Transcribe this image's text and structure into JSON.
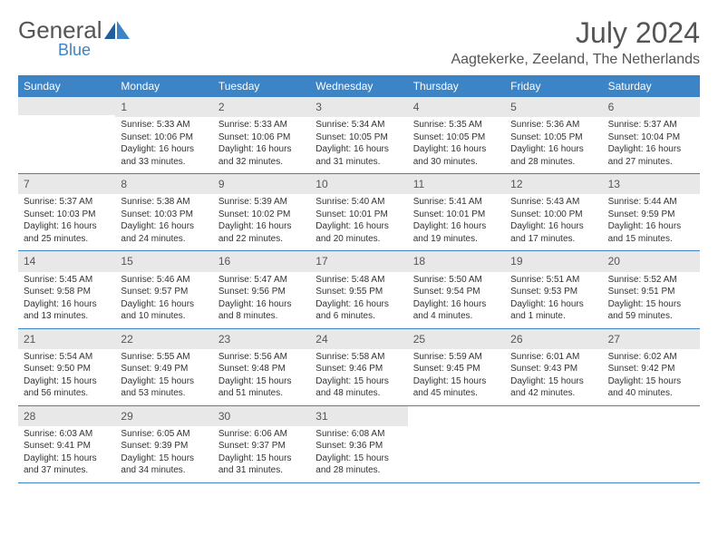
{
  "brand": {
    "general": "General",
    "blue": "Blue"
  },
  "title": "July 2024",
  "location": "Aagtekerke, Zeeland, The Netherlands",
  "colors": {
    "header_bg": "#3d84c6",
    "header_text": "#ffffff",
    "shaded_bg": "#e8e8e8",
    "text": "#333333",
    "title_text": "#555555",
    "border": "#3d84c6"
  },
  "day_names": [
    "Sunday",
    "Monday",
    "Tuesday",
    "Wednesday",
    "Thursday",
    "Friday",
    "Saturday"
  ],
  "weeks": [
    [
      null,
      {
        "d": "1",
        "sr": "Sunrise: 5:33 AM",
        "ss": "Sunset: 10:06 PM",
        "dl1": "Daylight: 16 hours",
        "dl2": "and 33 minutes."
      },
      {
        "d": "2",
        "sr": "Sunrise: 5:33 AM",
        "ss": "Sunset: 10:06 PM",
        "dl1": "Daylight: 16 hours",
        "dl2": "and 32 minutes."
      },
      {
        "d": "3",
        "sr": "Sunrise: 5:34 AM",
        "ss": "Sunset: 10:05 PM",
        "dl1": "Daylight: 16 hours",
        "dl2": "and 31 minutes."
      },
      {
        "d": "4",
        "sr": "Sunrise: 5:35 AM",
        "ss": "Sunset: 10:05 PM",
        "dl1": "Daylight: 16 hours",
        "dl2": "and 30 minutes."
      },
      {
        "d": "5",
        "sr": "Sunrise: 5:36 AM",
        "ss": "Sunset: 10:05 PM",
        "dl1": "Daylight: 16 hours",
        "dl2": "and 28 minutes."
      },
      {
        "d": "6",
        "sr": "Sunrise: 5:37 AM",
        "ss": "Sunset: 10:04 PM",
        "dl1": "Daylight: 16 hours",
        "dl2": "and 27 minutes."
      }
    ],
    [
      {
        "d": "7",
        "sr": "Sunrise: 5:37 AM",
        "ss": "Sunset: 10:03 PM",
        "dl1": "Daylight: 16 hours",
        "dl2": "and 25 minutes."
      },
      {
        "d": "8",
        "sr": "Sunrise: 5:38 AM",
        "ss": "Sunset: 10:03 PM",
        "dl1": "Daylight: 16 hours",
        "dl2": "and 24 minutes."
      },
      {
        "d": "9",
        "sr": "Sunrise: 5:39 AM",
        "ss": "Sunset: 10:02 PM",
        "dl1": "Daylight: 16 hours",
        "dl2": "and 22 minutes."
      },
      {
        "d": "10",
        "sr": "Sunrise: 5:40 AM",
        "ss": "Sunset: 10:01 PM",
        "dl1": "Daylight: 16 hours",
        "dl2": "and 20 minutes."
      },
      {
        "d": "11",
        "sr": "Sunrise: 5:41 AM",
        "ss": "Sunset: 10:01 PM",
        "dl1": "Daylight: 16 hours",
        "dl2": "and 19 minutes."
      },
      {
        "d": "12",
        "sr": "Sunrise: 5:43 AM",
        "ss": "Sunset: 10:00 PM",
        "dl1": "Daylight: 16 hours",
        "dl2": "and 17 minutes."
      },
      {
        "d": "13",
        "sr": "Sunrise: 5:44 AM",
        "ss": "Sunset: 9:59 PM",
        "dl1": "Daylight: 16 hours",
        "dl2": "and 15 minutes."
      }
    ],
    [
      {
        "d": "14",
        "sr": "Sunrise: 5:45 AM",
        "ss": "Sunset: 9:58 PM",
        "dl1": "Daylight: 16 hours",
        "dl2": "and 13 minutes."
      },
      {
        "d": "15",
        "sr": "Sunrise: 5:46 AM",
        "ss": "Sunset: 9:57 PM",
        "dl1": "Daylight: 16 hours",
        "dl2": "and 10 minutes."
      },
      {
        "d": "16",
        "sr": "Sunrise: 5:47 AM",
        "ss": "Sunset: 9:56 PM",
        "dl1": "Daylight: 16 hours",
        "dl2": "and 8 minutes."
      },
      {
        "d": "17",
        "sr": "Sunrise: 5:48 AM",
        "ss": "Sunset: 9:55 PM",
        "dl1": "Daylight: 16 hours",
        "dl2": "and 6 minutes."
      },
      {
        "d": "18",
        "sr": "Sunrise: 5:50 AM",
        "ss": "Sunset: 9:54 PM",
        "dl1": "Daylight: 16 hours",
        "dl2": "and 4 minutes."
      },
      {
        "d": "19",
        "sr": "Sunrise: 5:51 AM",
        "ss": "Sunset: 9:53 PM",
        "dl1": "Daylight: 16 hours",
        "dl2": "and 1 minute."
      },
      {
        "d": "20",
        "sr": "Sunrise: 5:52 AM",
        "ss": "Sunset: 9:51 PM",
        "dl1": "Daylight: 15 hours",
        "dl2": "and 59 minutes."
      }
    ],
    [
      {
        "d": "21",
        "sr": "Sunrise: 5:54 AM",
        "ss": "Sunset: 9:50 PM",
        "dl1": "Daylight: 15 hours",
        "dl2": "and 56 minutes."
      },
      {
        "d": "22",
        "sr": "Sunrise: 5:55 AM",
        "ss": "Sunset: 9:49 PM",
        "dl1": "Daylight: 15 hours",
        "dl2": "and 53 minutes."
      },
      {
        "d": "23",
        "sr": "Sunrise: 5:56 AM",
        "ss": "Sunset: 9:48 PM",
        "dl1": "Daylight: 15 hours",
        "dl2": "and 51 minutes."
      },
      {
        "d": "24",
        "sr": "Sunrise: 5:58 AM",
        "ss": "Sunset: 9:46 PM",
        "dl1": "Daylight: 15 hours",
        "dl2": "and 48 minutes."
      },
      {
        "d": "25",
        "sr": "Sunrise: 5:59 AM",
        "ss": "Sunset: 9:45 PM",
        "dl1": "Daylight: 15 hours",
        "dl2": "and 45 minutes."
      },
      {
        "d": "26",
        "sr": "Sunrise: 6:01 AM",
        "ss": "Sunset: 9:43 PM",
        "dl1": "Daylight: 15 hours",
        "dl2": "and 42 minutes."
      },
      {
        "d": "27",
        "sr": "Sunrise: 6:02 AM",
        "ss": "Sunset: 9:42 PM",
        "dl1": "Daylight: 15 hours",
        "dl2": "and 40 minutes."
      }
    ],
    [
      {
        "d": "28",
        "sr": "Sunrise: 6:03 AM",
        "ss": "Sunset: 9:41 PM",
        "dl1": "Daylight: 15 hours",
        "dl2": "and 37 minutes."
      },
      {
        "d": "29",
        "sr": "Sunrise: 6:05 AM",
        "ss": "Sunset: 9:39 PM",
        "dl1": "Daylight: 15 hours",
        "dl2": "and 34 minutes."
      },
      {
        "d": "30",
        "sr": "Sunrise: 6:06 AM",
        "ss": "Sunset: 9:37 PM",
        "dl1": "Daylight: 15 hours",
        "dl2": "and 31 minutes."
      },
      {
        "d": "31",
        "sr": "Sunrise: 6:08 AM",
        "ss": "Sunset: 9:36 PM",
        "dl1": "Daylight: 15 hours",
        "dl2": "and 28 minutes."
      },
      null,
      null,
      null
    ]
  ]
}
